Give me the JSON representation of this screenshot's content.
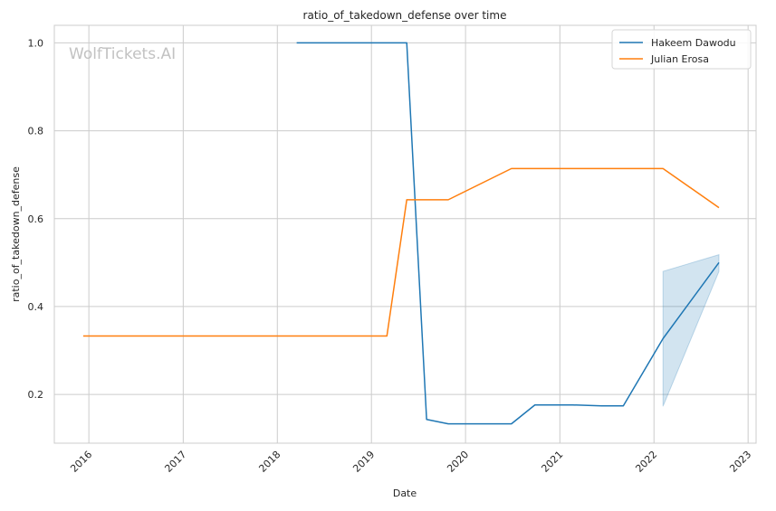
{
  "chart_data": {
    "type": "line",
    "title": "ratio_of_takedown_defense over time",
    "xlabel": "Date",
    "ylabel": "ratio_of_takedown_defense",
    "watermark": "WolfTickets.AI",
    "x_ticks": [
      "2016",
      "2017",
      "2018",
      "2019",
      "2020",
      "2021",
      "2022",
      "2023"
    ],
    "y_ticks": [
      "0.2",
      "0.4",
      "0.6",
      "0.8",
      "1.0"
    ],
    "xlim": [
      "2015-08-20",
      "2023-02-01"
    ],
    "ylim": [
      0.089,
      1.04
    ],
    "grid": true,
    "legend_position": "top-right",
    "series": [
      {
        "name": "Hakeem Dawodu",
        "color": "#1f77b4",
        "x": [
          "2018-03-17",
          "2019-05-18",
          "2019-08-03",
          "2019-10-26",
          "2020-06-27",
          "2020-09-26",
          "2021-02-20",
          "2021-06-12",
          "2021-09-04",
          "2022-02-05",
          "2022-09-10"
        ],
        "y": [
          1.0,
          1.0,
          0.143,
          0.133,
          0.133,
          0.176,
          0.176,
          0.174,
          0.174,
          0.327,
          0.5
        ],
        "band": {
          "x": [
            "2022-02-05",
            "2022-09-10"
          ],
          "lower": [
            0.173,
            0.48
          ],
          "upper": [
            0.48,
            0.518
          ]
        }
      },
      {
        "name": "Julian Erosa",
        "color": "#ff7f0e",
        "x": [
          "2015-12-10",
          "2019-03-02",
          "2019-05-18",
          "2019-10-26",
          "2020-06-27",
          "2022-02-05",
          "2022-09-10"
        ],
        "y": [
          0.333,
          0.333,
          0.643,
          0.643,
          0.714,
          0.714,
          0.625
        ]
      }
    ]
  }
}
